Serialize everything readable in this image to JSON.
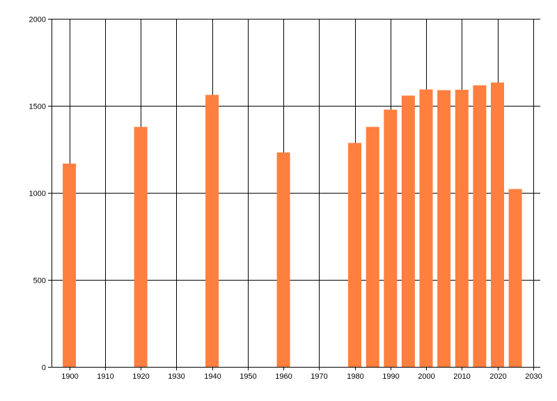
{
  "chart_data": {
    "type": "bar",
    "title": "",
    "xlabel": "",
    "ylabel": "",
    "x": [
      1900,
      1920,
      1940,
      1960,
      1980,
      1985,
      1990,
      1995,
      2000,
      2005,
      2010,
      2015,
      2020,
      2025
    ],
    "values": [
      1168,
      1379,
      1563,
      1232,
      1287,
      1379,
      1478,
      1559,
      1594,
      1590,
      1592,
      1618,
      1634,
      1022
    ],
    "xlim": [
      1895,
      2032
    ],
    "ylim": [
      0,
      2000
    ],
    "x_ticks": [
      "1900",
      "1910",
      "1920",
      "1930",
      "1940",
      "1950",
      "1960",
      "1970",
      "1980",
      "1990",
      "2000",
      "2010",
      "2020",
      "2030"
    ],
    "y_ticks": [
      "0",
      "500",
      "1000",
      "1500",
      "2000"
    ],
    "grid": true,
    "bar_color": "#FF7F3F"
  }
}
